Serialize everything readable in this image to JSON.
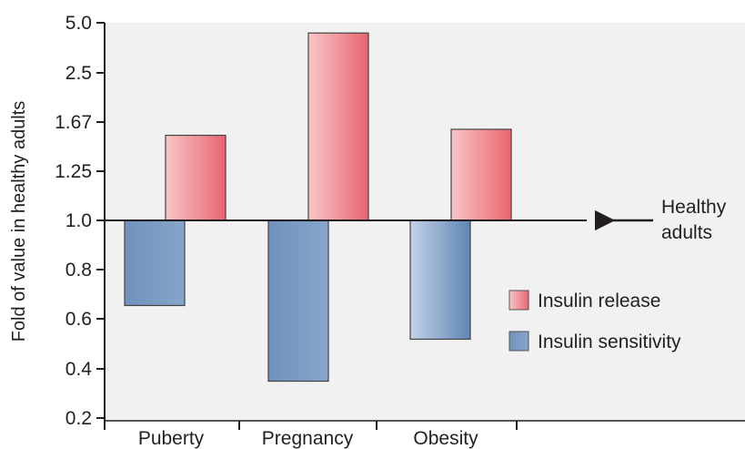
{
  "chart_data": {
    "type": "bar",
    "ylabel": "Fold of value in healthy adults",
    "y_scale": "log2",
    "baseline": 1.0,
    "yticks": [
      "5.0",
      "2.5",
      "1.67",
      "1.25",
      "1.0",
      "0.8",
      "0.6",
      "0.4",
      "0.2"
    ],
    "ylim": [
      0.2,
      5.0
    ],
    "categories": [
      "Puberty",
      "Pregnancy",
      "Obesity"
    ],
    "series": [
      {
        "name": "Insulin release",
        "color": "#e8747c",
        "values": [
          2.0,
          4.6,
          2.1
        ]
      },
      {
        "name": "Insulin sensitivity",
        "color": "#6a8fba",
        "values": [
          0.5,
          0.27,
          0.38
        ]
      }
    ],
    "annotation": {
      "line1": "Healthy",
      "line2": "adults"
    },
    "legend_position": "right",
    "background": "#f1f1f1"
  }
}
